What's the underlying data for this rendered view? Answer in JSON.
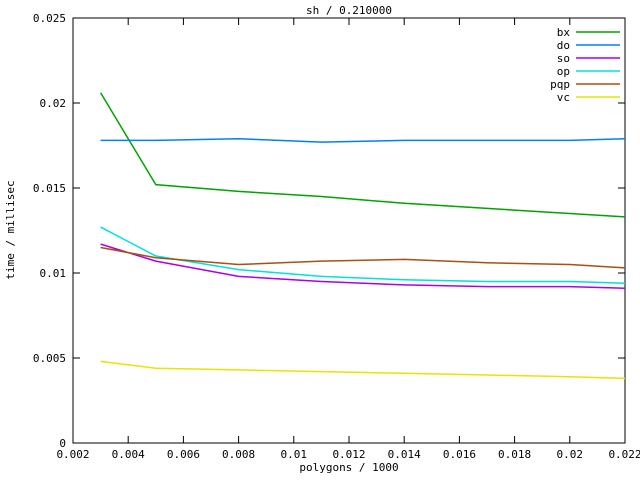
{
  "chart_data": {
    "type": "line",
    "title": "sh / 0.210000",
    "xlabel": "polygons / 1000",
    "ylabel": "time / millisec",
    "xlim": [
      0.002,
      0.022
    ],
    "ylim": [
      0,
      0.025
    ],
    "grid": false,
    "legend_position": "top-right-inside",
    "x_ticks": [
      0.002,
      0.004,
      0.006,
      0.008,
      0.01,
      0.012,
      0.014,
      0.016,
      0.018,
      0.02,
      0.022
    ],
    "x_tick_labels": [
      "0.002",
      "0.004",
      "0.006",
      "0.008",
      "0.01",
      "0.012",
      "0.014",
      "0.016",
      "0.018",
      "0.02",
      "0.022"
    ],
    "y_ticks": [
      0,
      0.005,
      0.01,
      0.015,
      0.02,
      0.025
    ],
    "y_tick_labels": [
      "0",
      "0.005",
      "0.01",
      "0.015",
      "0.02",
      "0.025"
    ],
    "x": [
      0.003,
      0.005,
      0.008,
      0.011,
      0.014,
      0.017,
      0.02,
      0.022
    ],
    "series": [
      {
        "name": "bx",
        "color": "#00a400",
        "values": [
          0.0206,
          0.0152,
          0.0148,
          0.0145,
          0.0141,
          0.0138,
          0.0135,
          0.0133
        ]
      },
      {
        "name": "do",
        "color": "#0080f8",
        "values": [
          0.0178,
          0.0178,
          0.0179,
          0.0177,
          0.0178,
          0.0178,
          0.0178,
          0.0179
        ]
      },
      {
        "name": "so",
        "color": "#aa00ee",
        "values": [
          0.0117,
          0.0107,
          0.0098,
          0.0095,
          0.0093,
          0.0092,
          0.0092,
          0.0091
        ]
      },
      {
        "name": "op",
        "color": "#00e0e0",
        "values": [
          0.0127,
          0.011,
          0.0102,
          0.0098,
          0.0096,
          0.0095,
          0.0095,
          0.0094
        ]
      },
      {
        "name": "pqp",
        "color": "#a85010",
        "values": [
          0.0115,
          0.0109,
          0.0105,
          0.0107,
          0.0108,
          0.0106,
          0.0105,
          0.0103
        ]
      },
      {
        "name": "vc",
        "color": "#e6e600",
        "values": [
          0.0048,
          0.0044,
          0.0043,
          0.0042,
          0.0041,
          0.004,
          0.0039,
          0.0038
        ]
      }
    ],
    "colors": {
      "background": "#ffffff",
      "axis": "#000000",
      "text": "#000000"
    }
  }
}
